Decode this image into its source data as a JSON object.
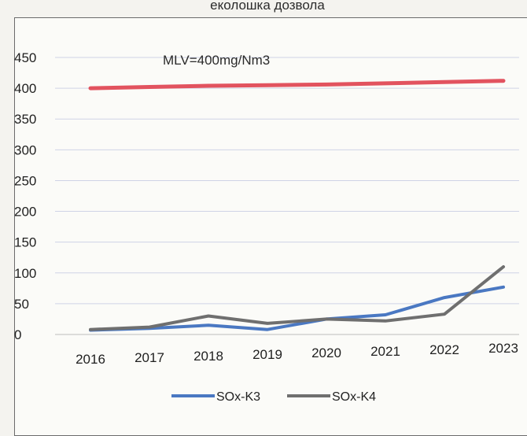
{
  "chart_data": {
    "type": "line",
    "title": "еколошка дозвола",
    "annotation": "MLV=400mg/Nm3",
    "x": [
      "2016",
      "2017",
      "2018",
      "2019",
      "2020",
      "2021",
      "2022",
      "2023"
    ],
    "yticks": [
      0,
      50,
      100,
      150,
      200,
      250,
      300,
      350,
      400,
      450
    ],
    "ylim": [
      0,
      450
    ],
    "grid": true,
    "legend_position": "bottom",
    "series": [
      {
        "name": "SOx-K3",
        "color": "#4a78c2",
        "values": [
          7,
          10,
          15,
          8,
          25,
          32,
          60,
          77
        ],
        "in_legend": true
      },
      {
        "name": "SOx-K4",
        "color": "#6f6f6f",
        "values": [
          8,
          12,
          30,
          18,
          25,
          22,
          33,
          110
        ],
        "in_legend": true
      },
      {
        "name": "",
        "color": "#e2535f",
        "values": [
          400,
          402,
          404,
          405,
          406,
          408,
          410,
          412
        ],
        "in_legend": false
      }
    ]
  }
}
